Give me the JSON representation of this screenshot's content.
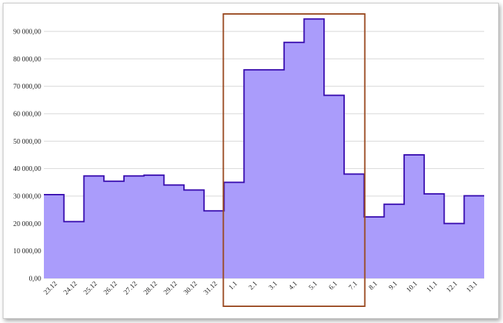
{
  "chart_data": {
    "type": "area",
    "step": true,
    "categories": [
      "23.12",
      "24.12",
      "25.12",
      "26.12",
      "27.12",
      "28.12",
      "29.12",
      "30.12",
      "31.12",
      "1.1",
      "2.1",
      "3.1",
      "4.1",
      "5.1",
      "6.1",
      "7.1",
      "8.1",
      "9.1",
      "10.1",
      "11.1",
      "12.1",
      "13.1"
    ],
    "series": [
      {
        "values": [
          30500,
          20700,
          37300,
          35400,
          37300,
          37600,
          34000,
          32200,
          24600,
          35000,
          76000,
          76000,
          86000,
          94500,
          66700,
          38000,
          22400,
          27000,
          45000,
          30800,
          20000,
          30100
        ]
      }
    ],
    "y_ticks": [
      "0,00",
      "10 000,00",
      "20 000,00",
      "30 000,00",
      "40 000,00",
      "50 000,00",
      "60 000,00",
      "70 000,00",
      "80 000,00",
      "90 000,00"
    ],
    "ylim": [
      0,
      90000
    ],
    "grid": true,
    "highlight_range": [
      "1.1",
      "7.1"
    ],
    "colors": {
      "fill": "#aa9cfb",
      "line": "#3a0fb0",
      "grid": "#d6d6d6",
      "highlight": "#9a4a22"
    }
  }
}
